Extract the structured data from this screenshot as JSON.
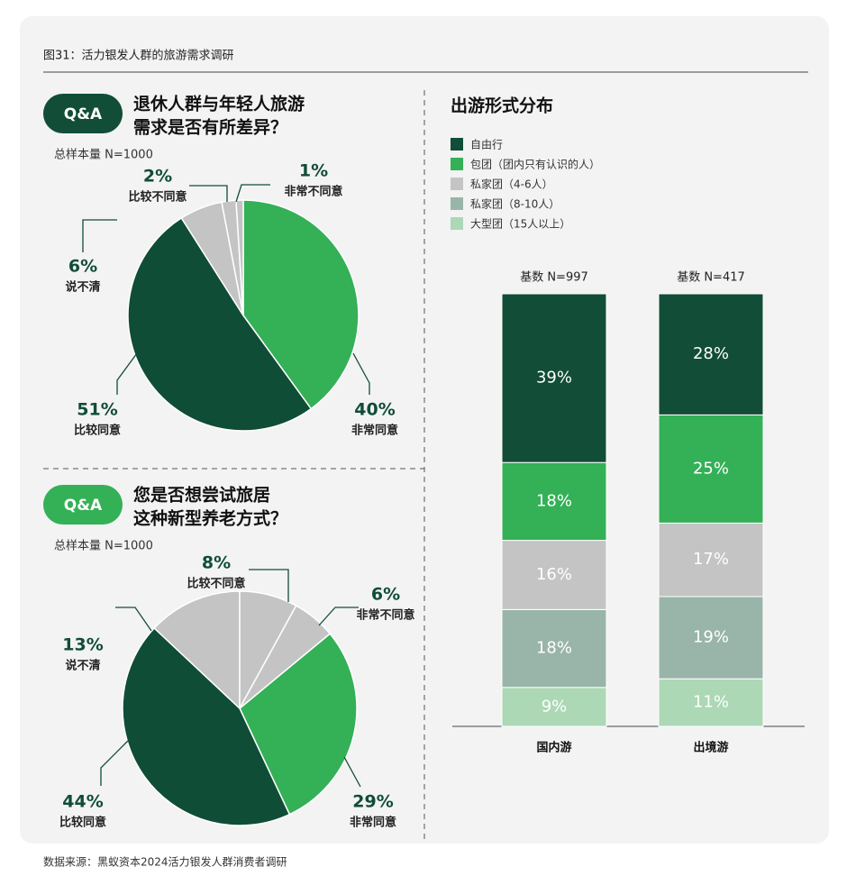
{
  "title": "图31：活力银发人群的旅游需求调研",
  "source": "数据来源：黑蚁资本2024活力银发人群消费者调研",
  "chart_data": [
    {
      "type": "pie",
      "badge": "Q&A",
      "title": [
        "退休人群与年轻人旅游",
        "需求是否有所差异？"
      ],
      "subtitle": "总样本量 N=1000",
      "categories": [
        "非常同意",
        "比较同意",
        "说不清",
        "比较不同意",
        "非常不同意"
      ],
      "values": [
        40,
        51,
        6,
        2,
        1
      ],
      "value_labels": [
        "40%",
        "51%",
        "6%",
        "2%",
        "1%"
      ],
      "colors": [
        "#34b057",
        "#0f4d36",
        "#c4c4c4",
        "#c4c4c4",
        "#c4c4c4"
      ]
    },
    {
      "type": "pie",
      "badge": "Q&A",
      "title": [
        "您是否想尝试旅居",
        "这种新型养老方式？"
      ],
      "subtitle": "总样本量 N=1000",
      "categories": [
        "非常同意",
        "比较同意",
        "说不清",
        "比较不同意",
        "非常不同意"
      ],
      "values": [
        29,
        44,
        13,
        8,
        6
      ],
      "value_labels": [
        "29%",
        "44%",
        "13%",
        "8%",
        "6%"
      ],
      "colors": [
        "#34b057",
        "#0f4d36",
        "#c4c4c4",
        "#c4c4c4",
        "#c4c4c4"
      ]
    },
    {
      "type": "stacked_bar",
      "title": "出游形式分布",
      "categories": [
        "国内游",
        "出境游"
      ],
      "category_notes": [
        "基数 N=997",
        "基数 N=417"
      ],
      "series": [
        {
          "name": "自由行",
          "color": "#114d37",
          "values": [
            39,
            28
          ],
          "value_labels": [
            "39%",
            "28%"
          ]
        },
        {
          "name": "包团（团内只有认识的人）",
          "color": "#34b057",
          "values": [
            18,
            25
          ],
          "value_labels": [
            "18%",
            "25%"
          ]
        },
        {
          "name": "私家团（4-6人）",
          "color": "#c4c4c4",
          "values": [
            16,
            17
          ],
          "value_labels": [
            "16%",
            "17%"
          ]
        },
        {
          "name": "私家团（8-10人）",
          "color": "#99b5aa",
          "values": [
            18,
            19
          ],
          "value_labels": [
            "18%",
            "19%"
          ]
        },
        {
          "name": "大型团（15人以上）",
          "color": "#acd8b5",
          "values": [
            9,
            11
          ],
          "value_labels": [
            "9%",
            "11%"
          ]
        }
      ]
    }
  ]
}
